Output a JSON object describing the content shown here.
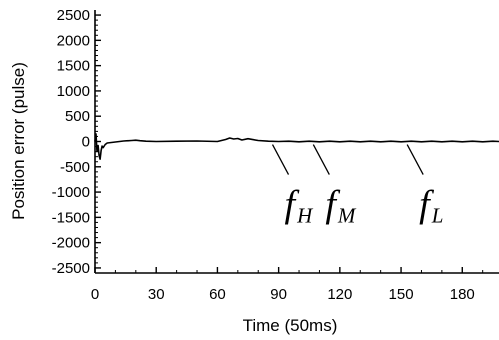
{
  "chart_data": {
    "type": "line",
    "title": "",
    "xlabel": "Time (50ms)",
    "ylabel": "Position error (pulse)",
    "xlim": [
      0,
      198
    ],
    "ylim": [
      -2600,
      2600
    ],
    "x_ticks": [
      0,
      30,
      60,
      90,
      120,
      150,
      180
    ],
    "y_ticks": [
      2500,
      2000,
      1500,
      1000,
      500,
      0,
      -500,
      -1000,
      -1500,
      -2000,
      -2500
    ],
    "grid": false,
    "series": [
      {
        "name": "",
        "x": [
          0,
          0.5,
          1,
          1.5,
          2,
          2.5,
          3,
          3.5,
          4,
          5,
          6,
          8,
          10,
          14,
          18,
          20,
          22,
          25,
          30,
          40,
          50,
          60,
          64,
          66,
          68,
          70,
          72,
          75,
          80,
          85,
          90,
          95,
          100,
          105,
          110,
          115,
          120,
          125,
          130,
          135,
          140,
          145,
          150,
          155,
          160,
          165,
          170,
          175,
          180,
          185,
          190,
          195,
          198
        ],
        "y": [
          0,
          150,
          -200,
          -80,
          -280,
          -350,
          -180,
          -90,
          -120,
          -60,
          -30,
          -20,
          -10,
          10,
          20,
          25,
          15,
          5,
          0,
          5,
          10,
          0,
          40,
          70,
          50,
          60,
          30,
          55,
          20,
          5,
          0,
          5,
          -5,
          5,
          -5,
          5,
          -5,
          5,
          -5,
          5,
          -5,
          5,
          -5,
          5,
          -5,
          5,
          -5,
          5,
          -5,
          5,
          -5,
          5,
          0
        ]
      }
    ],
    "annotations": [
      {
        "label": "f",
        "sub": "H",
        "x": 87,
        "y": -60
      },
      {
        "label": "f",
        "sub": "M",
        "x": 107,
        "y": -60
      },
      {
        "label": "f",
        "sub": "L",
        "x": 153,
        "y": -60
      }
    ]
  }
}
